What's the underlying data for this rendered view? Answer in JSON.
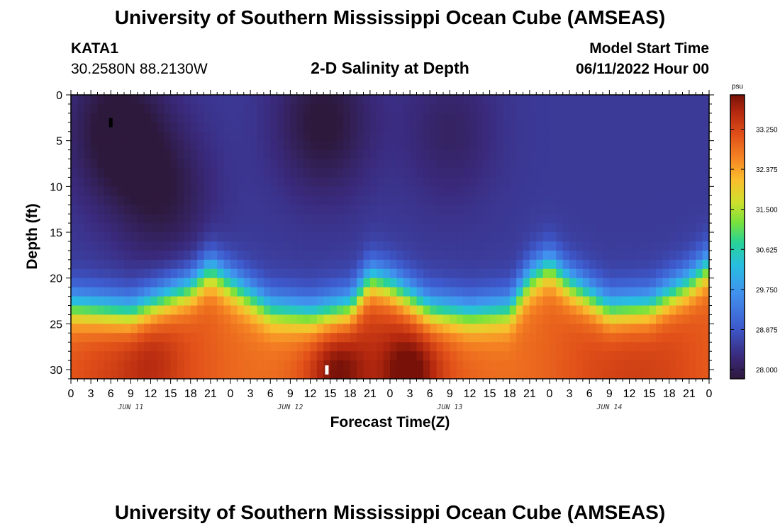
{
  "header": {
    "title": "University of Southern Mississippi Ocean Cube (AMSEAS)",
    "station_id": "KATA1",
    "station_coords": "30.2580N  88.2130W",
    "plot_title": "2-D Salinity at Depth",
    "model_start_label": "Model Start Time",
    "model_start_value": "06/11/2022 Hour 00"
  },
  "footer": {
    "title": "University of Southern Mississippi Ocean Cube (AMSEAS)"
  },
  "chart_data": {
    "type": "heatmap",
    "title": "2-D Salinity at Depth",
    "xlabel": "Forecast Time(Z)",
    "ylabel": "Depth (ft)",
    "x_hours_range": [
      0,
      96
    ],
    "x_tick_labels": [
      "0",
      "3",
      "6",
      "9",
      "12",
      "15",
      "18",
      "21",
      "0",
      "3",
      "6",
      "9",
      "12",
      "15",
      "18",
      "21",
      "0",
      "3",
      "6",
      "9",
      "12",
      "15",
      "18",
      "21",
      "0",
      "3",
      "6",
      "9",
      "12",
      "15",
      "18",
      "21",
      "0"
    ],
    "date_labels": [
      "JUN 11",
      "JUN 12",
      "JUN 13",
      "JUN 14"
    ],
    "y_range": [
      0,
      31
    ],
    "y_ticks": [
      0,
      5,
      10,
      15,
      20,
      25,
      30
    ],
    "colorbar": {
      "units": "psu",
      "range": [
        27.8,
        34.0
      ],
      "tick_values": [
        28.0,
        28.875,
        29.75,
        30.625,
        31.5,
        32.375,
        33.25
      ],
      "tick_labels": [
        "28.000",
        "28.875",
        "29.750",
        "30.625",
        "31.500",
        "32.375",
        "33.250"
      ]
    },
    "halocline_depth_ft": [
      [
        0,
        21.5
      ],
      [
        9,
        22.2
      ],
      [
        18,
        19.5
      ],
      [
        21,
        17.5
      ],
      [
        24,
        19.0
      ],
      [
        30,
        21.8
      ],
      [
        36,
        22.4
      ],
      [
        42,
        21.5
      ],
      [
        45,
        18.5
      ],
      [
        48,
        19.2
      ],
      [
        54,
        21.8
      ],
      [
        60,
        22.4
      ],
      [
        66,
        21.8
      ],
      [
        69,
        18.5
      ],
      [
        72,
        17.0
      ],
      [
        75,
        19.0
      ],
      [
        81,
        21.8
      ],
      [
        87,
        21.5
      ],
      [
        93,
        19.0
      ],
      [
        96,
        17.0
      ]
    ],
    "surface_salinity_psu": 28.5,
    "bottom_salinity_psu": 33.1,
    "low_salinity_cores": [
      {
        "hour": 7,
        "depth_ft": 4,
        "value_psu": 27.85
      },
      {
        "hour": 14,
        "depth_ft": 11,
        "value_psu": 28.1
      },
      {
        "hour": 38,
        "depth_ft": 3,
        "value_psu": 27.95
      },
      {
        "hour": 57,
        "depth_ft": 4,
        "value_psu": 28.3
      }
    ],
    "high_salinity_cores": [
      {
        "hour": 40,
        "depth_ft": 30,
        "value_psu": 33.95
      },
      {
        "hour": 51,
        "depth_ft": 30,
        "value_psu": 34.0
      },
      {
        "hour": 12,
        "depth_ft": 29,
        "value_psu": 33.4
      }
    ],
    "markers": [
      {
        "hour": 6,
        "depth_ft": 3,
        "color": "#000000"
      },
      {
        "hour": 38.5,
        "depth_ft": 30,
        "color": "#ffffff"
      }
    ]
  }
}
